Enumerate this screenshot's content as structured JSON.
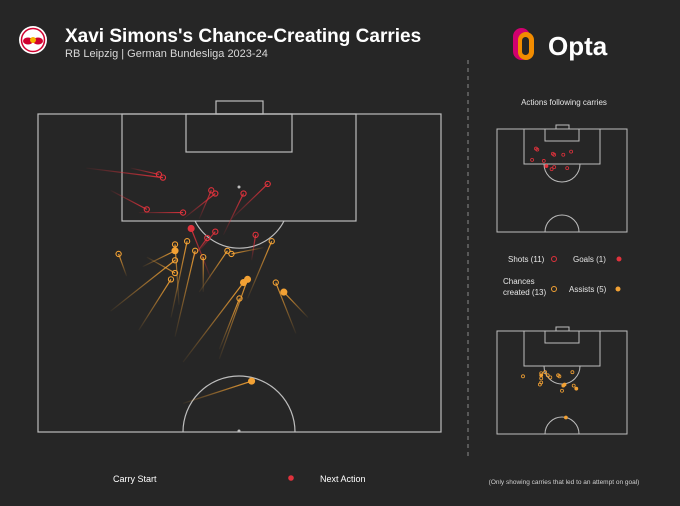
{
  "header": {
    "title": "Xavi Simons's Chance-Creating Carries",
    "subtitle": "RB Leipzig | German Bundesliga 2023-24",
    "brand": "Opta"
  },
  "side_panel": {
    "title": "Actions following carries",
    "shots_label": "Shots (11)",
    "goals_label": "Goals (1)",
    "chances_label_line1": "Chances",
    "chances_label_line2": "created (13)",
    "assists_label": "Assists (5)"
  },
  "legend": {
    "carry_start": "Carry Start",
    "next_action": "Next Action"
  },
  "footnote": "(Only showing carries that led to an attempt on goal)",
  "colors": {
    "background": "#262626",
    "pitch_lines": "#bdbdbd",
    "shot": "#e0323c",
    "chance": "#f2a134",
    "text": "#ffffff"
  },
  "icons": {
    "club_badge": "rb-leipzig-badge",
    "brand_logo": "opta-logo"
  },
  "chart_data": {
    "type": "scatter",
    "description_units": "pitch coordinates 0-100; x across pitch width (left touchline=0), y distance from attacking goal line (goal line=0, halfway line=100)",
    "series": [
      {
        "name": "Shots (11)",
        "kind": "shot",
        "filled": false,
        "carries": [
          {
            "start": [
              12,
              17
            ],
            "end": [
              31,
              20
            ]
          },
          {
            "start": [
              23,
              17
            ],
            "end": [
              30,
              19
            ]
          },
          {
            "start": [
              18,
              24
            ],
            "end": [
              27,
              30
            ]
          },
          {
            "start": [
              25,
              31
            ],
            "end": [
              36,
              31
            ]
          },
          {
            "start": [
              40,
              33
            ],
            "end": [
              43,
              24
            ]
          },
          {
            "start": [
              36,
              33
            ],
            "end": [
              44,
              25
            ]
          },
          {
            "start": [
              48,
              33
            ],
            "end": [
              57,
              22
            ]
          },
          {
            "start": [
              46,
              38
            ],
            "end": [
              51,
              25
            ]
          },
          {
            "start": [
              40,
              43
            ],
            "end": [
              44,
              37
            ]
          },
          {
            "start": [
              38,
              46
            ],
            "end": [
              42,
              39
            ]
          },
          {
            "start": [
              53,
              46
            ],
            "end": [
              54,
              38
            ]
          }
        ]
      },
      {
        "name": "Goals (1)",
        "kind": "goal",
        "filled": true,
        "carries": [
          {
            "start": [
              43,
              52
            ],
            "end": [
              38,
              36
            ]
          }
        ]
      },
      {
        "name": "Chances created (13)",
        "kind": "chance",
        "filled": false,
        "carries": [
          {
            "start": [
              22,
              51
            ],
            "end": [
              20,
              44
            ]
          },
          {
            "start": [
              18,
              62
            ],
            "end": [
              34,
              46
            ]
          },
          {
            "start": [
              25,
              68
            ],
            "end": [
              33,
              52
            ]
          },
          {
            "start": [
              35,
              60
            ],
            "end": [
              34,
              41
            ]
          },
          {
            "start": [
              33,
              64
            ],
            "end": [
              37,
              40
            ]
          },
          {
            "start": [
              34,
              70
            ],
            "end": [
              39,
              43
            ]
          },
          {
            "start": [
              41,
              56
            ],
            "end": [
              41,
              45
            ]
          },
          {
            "start": [
              27,
              45
            ],
            "end": [
              34,
              50
            ]
          },
          {
            "start": [
              40,
              56
            ],
            "end": [
              47,
              43
            ]
          },
          {
            "start": [
              45,
              74
            ],
            "end": [
              50,
              58
            ]
          },
          {
            "start": [
              52,
              58
            ],
            "end": [
              58,
              40
            ]
          },
          {
            "start": [
              64,
              69
            ],
            "end": [
              59,
              53
            ]
          },
          {
            "start": [
              56,
              42
            ],
            "end": [
              48,
              44
            ]
          }
        ]
      },
      {
        "name": "Assists (5)",
        "kind": "assist",
        "filled": true,
        "carries": [
          {
            "start": [
              26,
              48
            ],
            "end": [
              34,
              43
            ]
          },
          {
            "start": [
              36,
              78
            ],
            "end": [
              51,
              53
            ]
          },
          {
            "start": [
              45,
              77
            ],
            "end": [
              52,
              52
            ]
          },
          {
            "start": [
              67,
              64
            ],
            "end": [
              61,
              56
            ]
          },
          {
            "start": [
              36,
              91
            ],
            "end": [
              53,
              84
            ]
          }
        ]
      }
    ]
  }
}
